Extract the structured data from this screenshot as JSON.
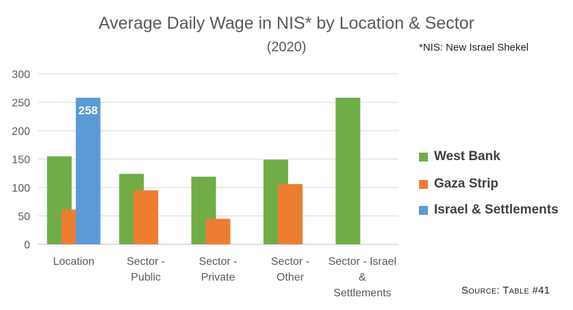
{
  "note": "*NIS: New Israel Shekel",
  "source": "Source: Table #41",
  "chart_data": {
    "type": "bar",
    "title": "Average Daily Wage in NIS* by Location & Sector",
    "subtitle": "(2020)",
    "categories": [
      "Location",
      "Sector - Public",
      "Sector - Private",
      "Sector - Other",
      "Sector - Israel & Settlements"
    ],
    "category_lines": [
      [
        "Location"
      ],
      [
        "Sector -",
        "Public"
      ],
      [
        "Sector -",
        "Private"
      ],
      [
        "Sector -",
        "Other"
      ],
      [
        "Sector - Israel",
        "&",
        "Settlements"
      ]
    ],
    "series": [
      {
        "name": "West Bank",
        "color": "#70ad47",
        "values": [
          155,
          124,
          119,
          149,
          258
        ]
      },
      {
        "name": "Gaza Strip",
        "color": "#ed7d31",
        "values": [
          61,
          95,
          45,
          106,
          null
        ]
      },
      {
        "name": "Israel & Settlements",
        "color": "#5b9bd5",
        "values": [
          258,
          null,
          null,
          null,
          null
        ]
      }
    ],
    "data_labels": [
      {
        "series": 2,
        "category": 0,
        "text": "258"
      }
    ],
    "yticks": [
      0,
      50,
      100,
      150,
      200,
      250,
      300
    ],
    "ylim": [
      0,
      300
    ],
    "grid": true,
    "legend_position": "right"
  }
}
